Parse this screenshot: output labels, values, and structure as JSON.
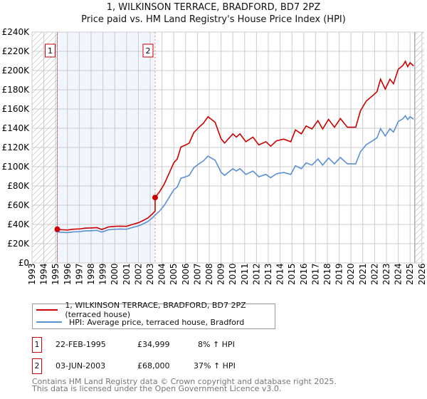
{
  "chart_data": {
    "type": "line",
    "title": "1, WILKINSON TERRACE, BRADFORD, BD7 2PZ",
    "subtitle": "Price paid vs. HM Land Registry's House Price Index (HPI)",
    "xlim": [
      1993,
      2026.2
    ],
    "ylim": [
      0,
      240000
    ],
    "x_ticks": [
      "1993",
      "1994",
      "1995",
      "1996",
      "1997",
      "1998",
      "1999",
      "2000",
      "2001",
      "2002",
      "2003",
      "2004",
      "2005",
      "2006",
      "2007",
      "2008",
      "2009",
      "2010",
      "2011",
      "2012",
      "2013",
      "2014",
      "2015",
      "2016",
      "2017",
      "2018",
      "2019",
      "2020",
      "2021",
      "2022",
      "2023",
      "2024",
      "2025",
      "2026"
    ],
    "y_ticks": [
      {
        "v": 0,
        "label": "£0"
      },
      {
        "v": 20000,
        "label": "£20K"
      },
      {
        "v": 40000,
        "label": "£40K"
      },
      {
        "v": 60000,
        "label": "£60K"
      },
      {
        "v": 80000,
        "label": "£80K"
      },
      {
        "v": 100000,
        "label": "£100K"
      },
      {
        "v": 120000,
        "label": "£120K"
      },
      {
        "v": 140000,
        "label": "£140K"
      },
      {
        "v": 160000,
        "label": "£160K"
      },
      {
        "v": 180000,
        "label": "£180K"
      },
      {
        "v": 200000,
        "label": "£200K"
      },
      {
        "v": 220000,
        "label": "£220K"
      },
      {
        "v": 240000,
        "label": "£240K"
      }
    ],
    "grid": true,
    "data_end": 2025.4,
    "series": [
      {
        "name": "HPI: Average price, terraced house, Bradford",
        "color": "#5b8fd4",
        "points": [
          [
            1995.0,
            32400
          ],
          [
            1995.5,
            31800
          ],
          [
            1996.0,
            31500
          ],
          [
            1996.5,
            32300
          ],
          [
            1997.0,
            32500
          ],
          [
            1997.5,
            33300
          ],
          [
            1998.0,
            33500
          ],
          [
            1998.5,
            33800
          ],
          [
            1998.9,
            32000
          ],
          [
            1999.5,
            34500
          ],
          [
            2000.0,
            35000
          ],
          [
            2000.5,
            35200
          ],
          [
            2001.0,
            35000
          ],
          [
            2001.4,
            36500
          ],
          [
            2002.0,
            38500
          ],
          [
            2002.3,
            40000
          ],
          [
            2002.8,
            43000
          ],
          [
            2003.2,
            47000
          ],
          [
            2003.44,
            49900
          ],
          [
            2003.8,
            54000
          ],
          [
            2004.2,
            60000
          ],
          [
            2004.6,
            68000
          ],
          [
            2005.0,
            76000
          ],
          [
            2005.3,
            79000
          ],
          [
            2005.6,
            88000
          ],
          [
            2006.0,
            89500
          ],
          [
            2006.3,
            91000
          ],
          [
            2006.7,
            99000
          ],
          [
            2007.2,
            103600
          ],
          [
            2007.5,
            106000
          ],
          [
            2007.9,
            111000
          ],
          [
            2008.5,
            106700
          ],
          [
            2009.0,
            94300
          ],
          [
            2009.3,
            91000
          ],
          [
            2010.0,
            98000
          ],
          [
            2010.3,
            95500
          ],
          [
            2010.6,
            98000
          ],
          [
            2011.1,
            92000
          ],
          [
            2011.7,
            95500
          ],
          [
            2012.2,
            89600
          ],
          [
            2012.8,
            92000
          ],
          [
            2013.2,
            88600
          ],
          [
            2013.7,
            92700
          ],
          [
            2014.3,
            94000
          ],
          [
            2014.9,
            92000
          ],
          [
            2015.3,
            101000
          ],
          [
            2015.8,
            98000
          ],
          [
            2016.2,
            104000
          ],
          [
            2016.7,
            101700
          ],
          [
            2017.2,
            108000
          ],
          [
            2017.6,
            101700
          ],
          [
            2018.1,
            109000
          ],
          [
            2018.6,
            103000
          ],
          [
            2019.1,
            109600
          ],
          [
            2019.7,
            103000
          ],
          [
            2020.4,
            103000
          ],
          [
            2020.8,
            115500
          ],
          [
            2021.3,
            123000
          ],
          [
            2021.8,
            126700
          ],
          [
            2022.2,
            130000
          ],
          [
            2022.5,
            139500
          ],
          [
            2022.9,
            132000
          ],
          [
            2023.3,
            139500
          ],
          [
            2023.6,
            136000
          ],
          [
            2024.0,
            147000
          ],
          [
            2024.4,
            150000
          ],
          [
            2024.6,
            153000
          ],
          [
            2024.8,
            149000
          ],
          [
            2025.0,
            152000
          ],
          [
            2025.3,
            149500
          ]
        ]
      },
      {
        "name": "1, WILKINSON TERRACE, BRADFORD, BD7 2PZ (terraced house)",
        "color": "#cc0000",
        "derived": "HPI indexed from most recent sale"
      }
    ],
    "sales": [
      {
        "id": "1",
        "year": 1995.14,
        "date": "22-FEB-1995",
        "price": 34999,
        "price_label": "£34,999",
        "hpi_label": "8% ↑ HPI"
      },
      {
        "id": "2",
        "year": 2003.42,
        "date": "03-JUN-2003",
        "price": 68000,
        "price_label": "£68,000",
        "hpi_label": "37% ↑ HPI"
      }
    ]
  },
  "legend": {
    "property": "1, WILKINSON TERRACE, BRADFORD, BD7 2PZ (terraced house)",
    "hpi": "HPI: Average price, terraced house, Bradford"
  },
  "footer": {
    "line1": "Contains HM Land Registry data © Crown copyright and database right 2025.",
    "line2": "This data is licensed under the Open Government Licence v3.0."
  }
}
